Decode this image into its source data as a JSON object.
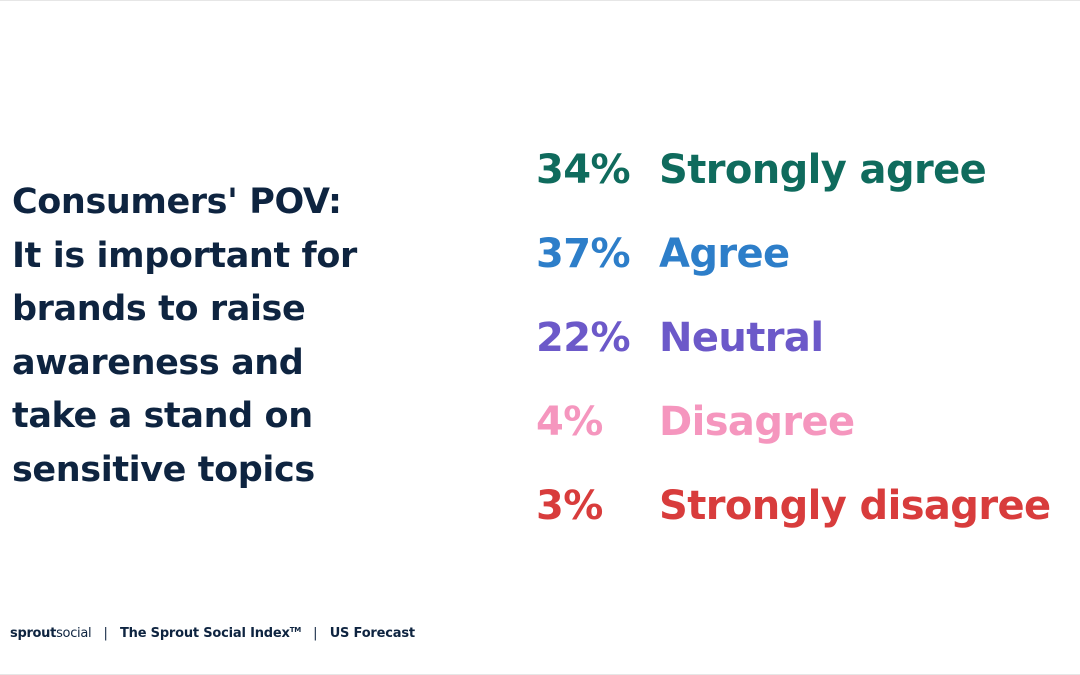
{
  "headline": {
    "lines": [
      "Consumers' POV:",
      "It is important for",
      "brands to raise",
      "awareness and",
      "take a stand on",
      "sensitive topics"
    ]
  },
  "chart_data": {
    "type": "table",
    "title": "",
    "categories": [
      "Strongly agree",
      "Agree",
      "Neutral",
      "Disagree",
      "Strongly disagree"
    ],
    "values": [
      34,
      37,
      22,
      4,
      3
    ],
    "value_labels": [
      "34%",
      "37%",
      "22%",
      "4%",
      "3%"
    ],
    "colors": [
      "#0f6b5d",
      "#2d7ec9",
      "#6c59c9",
      "#f596be",
      "#d83c3c"
    ]
  },
  "footer": {
    "brand_bold": "sprout",
    "brand_light": "social",
    "separator": "|",
    "report": "The Sprout Social Index",
    "trademark": "TM",
    "region": "US Forecast"
  }
}
